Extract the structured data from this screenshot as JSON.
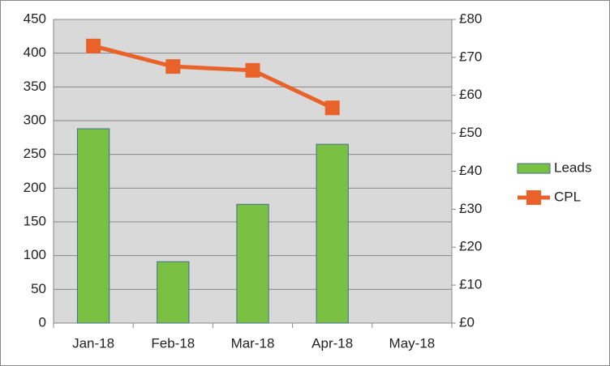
{
  "chart_data": {
    "type": "bar",
    "categories": [
      "Jan-18",
      "Feb-18",
      "Mar-18",
      "Apr-18",
      "May-18"
    ],
    "series": [
      {
        "name": "Leads",
        "type": "bar",
        "color": "#7ac143",
        "values": [
          288,
          91,
          176,
          265,
          null
        ]
      },
      {
        "name": "CPL",
        "type": "line",
        "color": "#e8622a",
        "axis": "y2",
        "values": [
          73.0,
          67.6,
          66.6,
          56.7,
          null
        ]
      }
    ],
    "ylim": [
      0,
      450
    ],
    "yticks": [
      0,
      50,
      100,
      150,
      200,
      250,
      300,
      350,
      400,
      450
    ],
    "y2lim": [
      0,
      80
    ],
    "y2ticks": [
      {
        "value": 0,
        "label": "£0"
      },
      {
        "value": 10,
        "label": "£10"
      },
      {
        "value": 20,
        "label": "£20"
      },
      {
        "value": 30,
        "label": "£30"
      },
      {
        "value": 40,
        "label": "£40"
      },
      {
        "value": 50,
        "label": "£50"
      },
      {
        "value": 60,
        "label": "£60"
      },
      {
        "value": 70,
        "label": "£70"
      },
      {
        "value": 80,
        "label": "£80"
      }
    ],
    "grid": true,
    "legend": "right"
  }
}
